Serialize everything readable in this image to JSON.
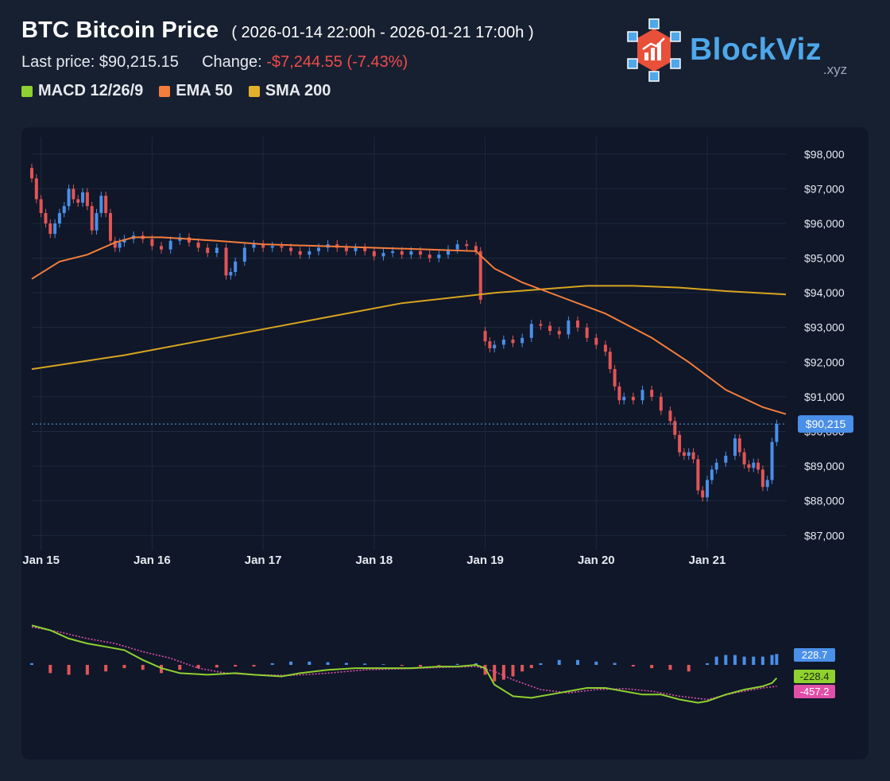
{
  "header": {
    "title": "BTC Bitcoin Price",
    "range": "( 2026-01-14 22:00h - 2026-01-21 17:00h )",
    "last_price_label": "Last price:",
    "last_price": "$90,215.15",
    "change_label": "Change:",
    "change_value": "-$7,244.55 (-7.43%)"
  },
  "legend": [
    {
      "label": "MACD 12/26/9",
      "color": "#8fd12f"
    },
    {
      "label": "EMA 50",
      "color": "#f47d3b"
    },
    {
      "label": "SMA 200",
      "color": "#e3b02a"
    }
  ],
  "logo": {
    "brand": "BlockViz",
    "suffix": ".xyz"
  },
  "colors": {
    "up": "#4a8fe8",
    "down": "#e25555",
    "ema": "#f47d3b",
    "sma": "#d9a41f",
    "macd": "#8fd12f",
    "signal": "#e04fa8",
    "grid": "#1e2a3d",
    "axis_text": "#e6e9ef"
  },
  "chart_data": {
    "type": "candlestick",
    "price_axis": {
      "ylim": [
        86800,
        98500
      ],
      "ticks": [
        "$98,000",
        "$97,000",
        "$96,000",
        "$95,000",
        "$94,000",
        "$93,000",
        "$92,000",
        "$91,000",
        "$90,000",
        "$89,000",
        "$88,000",
        "$87,000"
      ],
      "tick_values": [
        98000,
        97000,
        96000,
        95000,
        94000,
        93000,
        92000,
        91000,
        90000,
        89000,
        88000,
        87000
      ]
    },
    "x_axis": {
      "hours_total": 163,
      "ticks": [
        "Jan 15",
        "Jan 16",
        "Jan 17",
        "Jan 18",
        "Jan 19",
        "Jan 20",
        "Jan 21"
      ],
      "tick_hours": [
        2,
        26,
        50,
        74,
        98,
        122,
        146
      ]
    },
    "last_price_label": "$90,215",
    "last_price_value": 90215.15,
    "ema50": [
      [
        0,
        94400
      ],
      [
        6,
        94900
      ],
      [
        12,
        95100
      ],
      [
        18,
        95450
      ],
      [
        22,
        95600
      ],
      [
        28,
        95600
      ],
      [
        40,
        95500
      ],
      [
        50,
        95400
      ],
      [
        62,
        95350
      ],
      [
        74,
        95300
      ],
      [
        86,
        95250
      ],
      [
        96,
        95200
      ],
      [
        100,
        94700
      ],
      [
        106,
        94300
      ],
      [
        114,
        93900
      ],
      [
        124,
        93400
      ],
      [
        134,
        92700
      ],
      [
        142,
        92000
      ],
      [
        150,
        91200
      ],
      [
        158,
        90700
      ],
      [
        163,
        90500
      ]
    ],
    "sma200": [
      [
        0,
        91800
      ],
      [
        20,
        92200
      ],
      [
        40,
        92700
      ],
      [
        60,
        93200
      ],
      [
        80,
        93700
      ],
      [
        100,
        94000
      ],
      [
        120,
        94200
      ],
      [
        130,
        94200
      ],
      [
        140,
        94150
      ],
      [
        150,
        94050
      ],
      [
        163,
        93950
      ]
    ],
    "macd": {
      "axis_labels": [
        "228.7",
        "-228.4",
        "-457.2"
      ],
      "ylim": [
        -1400,
        1400
      ],
      "macd_line": [
        [
          0,
          1200
        ],
        [
          4,
          1050
        ],
        [
          8,
          800
        ],
        [
          12,
          650
        ],
        [
          16,
          550
        ],
        [
          20,
          450
        ],
        [
          24,
          150
        ],
        [
          28,
          -100
        ],
        [
          32,
          -250
        ],
        [
          38,
          -300
        ],
        [
          44,
          -250
        ],
        [
          48,
          -300
        ],
        [
          54,
          -350
        ],
        [
          58,
          -250
        ],
        [
          64,
          -150
        ],
        [
          70,
          -100
        ],
        [
          76,
          -100
        ],
        [
          82,
          -100
        ],
        [
          88,
          -50
        ],
        [
          92,
          -50
        ],
        [
          96,
          0
        ],
        [
          98,
          -100
        ],
        [
          100,
          -600
        ],
        [
          104,
          -950
        ],
        [
          108,
          -1000
        ],
        [
          112,
          -900
        ],
        [
          116,
          -800
        ],
        [
          120,
          -700
        ],
        [
          124,
          -700
        ],
        [
          128,
          -800
        ],
        [
          132,
          -900
        ],
        [
          136,
          -900
        ],
        [
          140,
          -1050
        ],
        [
          144,
          -1150
        ],
        [
          146,
          -1100
        ],
        [
          150,
          -900
        ],
        [
          154,
          -750
        ],
        [
          158,
          -650
        ],
        [
          160,
          -550
        ],
        [
          161,
          -400
        ]
      ],
      "signal_line": [
        [
          0,
          1150
        ],
        [
          6,
          1000
        ],
        [
          12,
          800
        ],
        [
          18,
          650
        ],
        [
          24,
          400
        ],
        [
          30,
          200
        ],
        [
          36,
          -100
        ],
        [
          42,
          -250
        ],
        [
          48,
          -300
        ],
        [
          56,
          -320
        ],
        [
          64,
          -250
        ],
        [
          72,
          -150
        ],
        [
          80,
          -120
        ],
        [
          88,
          -80
        ],
        [
          96,
          -50
        ],
        [
          100,
          -200
        ],
        [
          104,
          -450
        ],
        [
          110,
          -750
        ],
        [
          116,
          -850
        ],
        [
          122,
          -750
        ],
        [
          128,
          -720
        ],
        [
          134,
          -800
        ],
        [
          140,
          -950
        ],
        [
          146,
          -1050
        ],
        [
          152,
          -850
        ],
        [
          158,
          -700
        ],
        [
          161,
          -650
        ]
      ],
      "histogram": [
        [
          0,
          50
        ],
        [
          4,
          -250
        ],
        [
          8,
          -300
        ],
        [
          12,
          -300
        ],
        [
          16,
          -200
        ],
        [
          20,
          -100
        ],
        [
          24,
          -150
        ],
        [
          28,
          -250
        ],
        [
          32,
          -150
        ],
        [
          36,
          -100
        ],
        [
          40,
          -80
        ],
        [
          44,
          -50
        ],
        [
          48,
          -50
        ],
        [
          52,
          50
        ],
        [
          56,
          100
        ],
        [
          60,
          100
        ],
        [
          64,
          80
        ],
        [
          68,
          60
        ],
        [
          72,
          40
        ],
        [
          76,
          20
        ],
        [
          80,
          -30
        ],
        [
          84,
          -50
        ],
        [
          88,
          -20
        ],
        [
          92,
          30
        ],
        [
          96,
          50
        ],
        [
          98,
          -300
        ],
        [
          100,
          -500
        ],
        [
          102,
          -450
        ],
        [
          104,
          -350
        ],
        [
          106,
          -200
        ],
        [
          108,
          -100
        ],
        [
          110,
          50
        ],
        [
          114,
          150
        ],
        [
          118,
          150
        ],
        [
          122,
          100
        ],
        [
          126,
          60
        ],
        [
          130,
          -50
        ],
        [
          134,
          -100
        ],
        [
          138,
          -150
        ],
        [
          142,
          -200
        ],
        [
          146,
          50
        ],
        [
          148,
          250
        ],
        [
          150,
          300
        ],
        [
          152,
          300
        ],
        [
          154,
          250
        ],
        [
          156,
          250
        ],
        [
          158,
          250
        ],
        [
          160,
          300
        ],
        [
          161,
          330
        ]
      ]
    },
    "candles": [
      [
        0,
        97600,
        97300
      ],
      [
        1,
        97300,
        96700
      ],
      [
        2,
        96700,
        96300
      ],
      [
        3,
        96300,
        96000
      ],
      [
        4,
        96000,
        95700
      ],
      [
        5,
        95700,
        96000
      ],
      [
        6,
        96000,
        96300
      ],
      [
        7,
        96300,
        96500
      ],
      [
        8,
        96500,
        97000
      ],
      [
        9,
        97000,
        96700
      ],
      [
        10,
        96700,
        96600
      ],
      [
        11,
        96600,
        96900
      ],
      [
        12,
        96900,
        96500
      ],
      [
        13,
        96500,
        95800
      ],
      [
        14,
        95800,
        96300
      ],
      [
        15,
        96300,
        96800
      ],
      [
        16,
        96800,
        96300
      ],
      [
        17,
        96300,
        95500
      ],
      [
        18,
        95500,
        95300
      ],
      [
        19,
        95300,
        95450
      ],
      [
        20,
        95450,
        95550
      ],
      [
        22,
        95550,
        95650
      ],
      [
        24,
        95650,
        95550
      ],
      [
        26,
        95550,
        95350
      ],
      [
        28,
        95350,
        95250
      ],
      [
        30,
        95250,
        95500
      ],
      [
        32,
        95500,
        95600
      ],
      [
        34,
        95600,
        95450
      ],
      [
        36,
        95450,
        95300
      ],
      [
        38,
        95300,
        95150
      ],
      [
        40,
        95150,
        95300
      ],
      [
        42,
        95300,
        94500
      ],
      [
        43,
        94500,
        94600
      ],
      [
        44,
        94600,
        94900
      ],
      [
        46,
        94900,
        95300
      ],
      [
        48,
        95300,
        95400
      ],
      [
        50,
        95400,
        95300
      ],
      [
        52,
        95300,
        95350
      ],
      [
        54,
        95350,
        95300
      ],
      [
        56,
        95300,
        95200
      ],
      [
        58,
        95200,
        95100
      ],
      [
        60,
        95100,
        95200
      ],
      [
        62,
        95200,
        95300
      ],
      [
        64,
        95300,
        95400
      ],
      [
        66,
        95400,
        95300
      ],
      [
        68,
        95300,
        95200
      ],
      [
        70,
        95200,
        95300
      ],
      [
        72,
        95300,
        95200
      ],
      [
        74,
        95200,
        95050
      ],
      [
        76,
        95050,
        95150
      ],
      [
        78,
        95150,
        95200
      ],
      [
        80,
        95200,
        95100
      ],
      [
        82,
        95100,
        95200
      ],
      [
        84,
        95200,
        95100
      ],
      [
        86,
        95100,
        95000
      ],
      [
        88,
        95000,
        95100
      ],
      [
        90,
        95100,
        95250
      ],
      [
        92,
        95250,
        95400
      ],
      [
        94,
        95400,
        95350
      ],
      [
        96,
        95350,
        95200
      ],
      [
        97,
        95200,
        93800
      ],
      [
        98,
        92900,
        92600
      ],
      [
        99,
        92600,
        92400
      ],
      [
        100,
        92400,
        92500
      ],
      [
        102,
        92500,
        92650
      ],
      [
        104,
        92650,
        92550
      ],
      [
        106,
        92550,
        92700
      ],
      [
        108,
        92700,
        93100
      ],
      [
        110,
        93100,
        93050
      ],
      [
        112,
        93050,
        92900
      ],
      [
        114,
        92900,
        92800
      ],
      [
        116,
        92800,
        93200
      ],
      [
        118,
        93200,
        93000
      ],
      [
        120,
        93000,
        92700
      ],
      [
        122,
        92700,
        92500
      ],
      [
        124,
        92500,
        92300
      ],
      [
        125,
        92300,
        91800
      ],
      [
        126,
        91800,
        91300
      ],
      [
        127,
        91300,
        90900
      ],
      [
        128,
        90900,
        91000
      ],
      [
        130,
        91000,
        90900
      ],
      [
        132,
        90900,
        91200
      ],
      [
        134,
        91200,
        91000
      ],
      [
        136,
        91000,
        90600
      ],
      [
        138,
        90600,
        90300
      ],
      [
        139,
        90300,
        89900
      ],
      [
        140,
        89900,
        89400
      ],
      [
        141,
        89400,
        89300
      ],
      [
        142,
        89300,
        89400
      ],
      [
        143,
        89400,
        89200
      ],
      [
        144,
        89200,
        88300
      ],
      [
        145,
        88300,
        88100
      ],
      [
        146,
        88100,
        88600
      ],
      [
        147,
        88600,
        88900
      ],
      [
        148,
        88900,
        89100
      ],
      [
        150,
        89100,
        89300
      ],
      [
        152,
        89300,
        89800
      ],
      [
        153,
        89800,
        89400
      ],
      [
        154,
        89400,
        89050
      ],
      [
        155,
        89050,
        88950
      ],
      [
        156,
        88950,
        89100
      ],
      [
        157,
        89100,
        88900
      ],
      [
        158,
        88900,
        88400
      ],
      [
        159,
        88400,
        88600
      ],
      [
        160,
        88600,
        89700
      ],
      [
        161,
        89700,
        90215
      ]
    ]
  }
}
